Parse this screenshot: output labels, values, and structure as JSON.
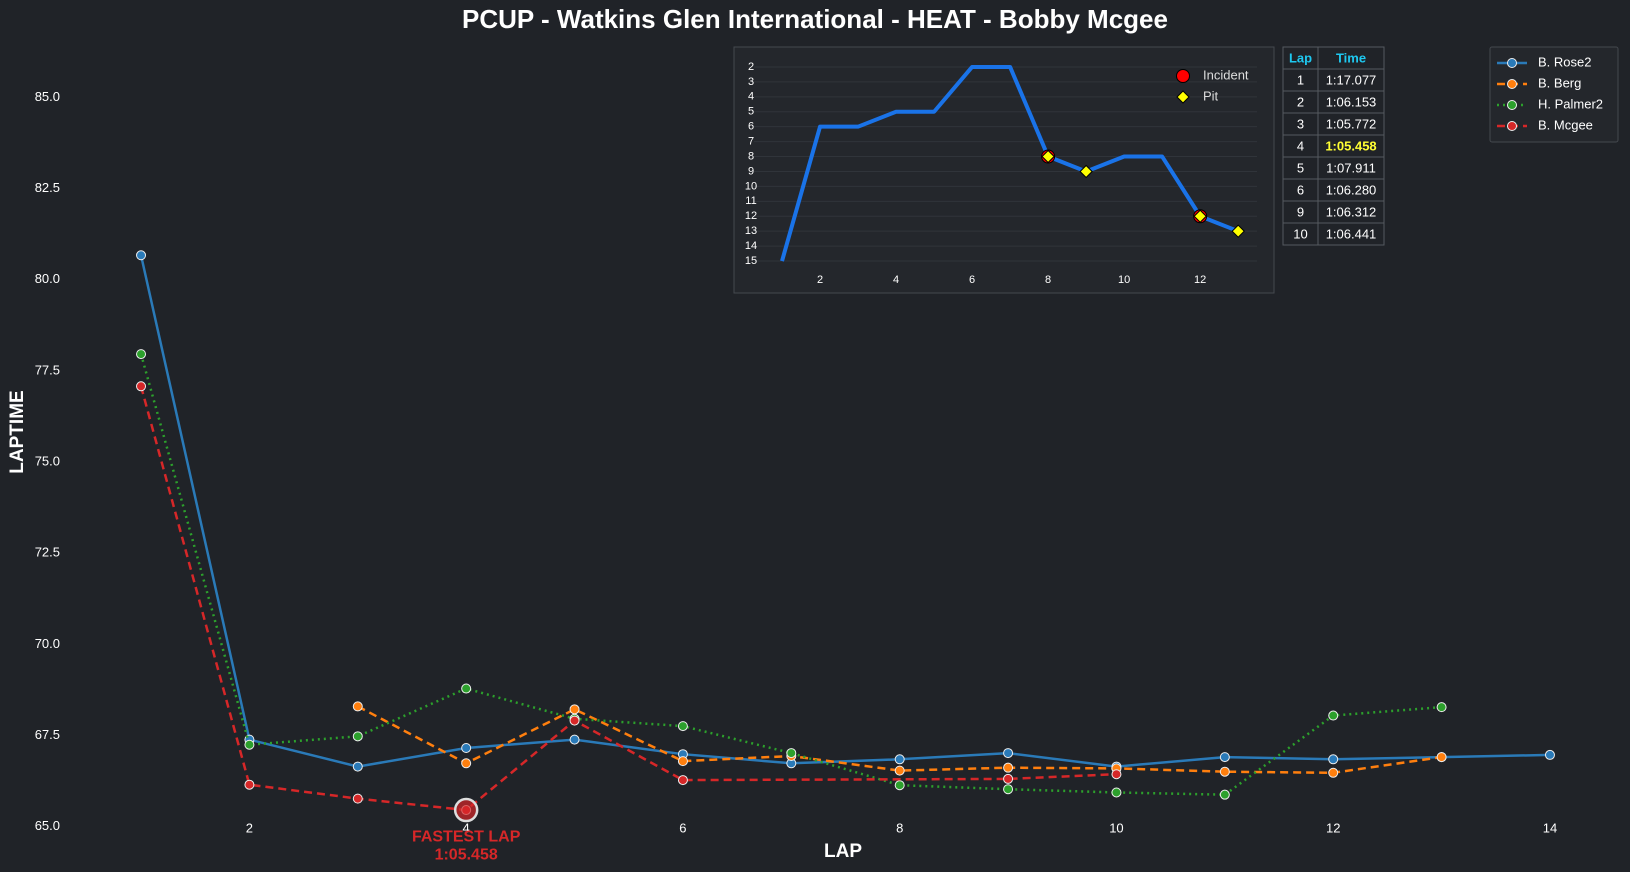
{
  "chart_data": [
    {
      "type": "line",
      "title": "PCUP - Watkins Glen International - HEAT - Bobby Mcgee",
      "x_label": "LAP",
      "y_label": "LAPTIME",
      "xlim": [
        0.4,
        14.6
      ],
      "ylim": [
        64.5,
        86.6
      ],
      "xticks": [
        2,
        4,
        6,
        8,
        10,
        12,
        14
      ],
      "yticks": [
        {
          "value": 65,
          "label": "65.0"
        },
        67.5,
        {
          "value": 70,
          "label": "70.0"
        },
        72.5,
        {
          "value": 75,
          "label": "75.0"
        },
        77.5,
        {
          "value": 80,
          "label": "80.0"
        },
        82.5,
        {
          "value": 85,
          "label": "85.0"
        }
      ],
      "legend": "upper right",
      "series": [
        {
          "name": "B. Rose2",
          "color": "#2a7ab8",
          "dash": "solid",
          "x": [
            1,
            2,
            3,
            4,
            5,
            6,
            7,
            8,
            9,
            10,
            11,
            12,
            13,
            14
          ],
          "values": [
            80.67,
            67.39,
            66.65,
            67.16,
            67.39,
            66.99,
            66.74,
            66.85,
            67.02,
            66.65,
            66.91,
            66.85,
            66.91,
            66.97
          ]
        },
        {
          "name": "B. Berg",
          "color": "#ff7f0e",
          "dash": "dashed",
          "x": [
            3,
            4,
            5,
            6,
            7,
            8,
            9,
            10,
            11,
            12,
            13
          ],
          "values": [
            68.3,
            66.74,
            68.22,
            66.8,
            66.94,
            66.54,
            66.62,
            66.6,
            66.51,
            66.48,
            66.91
          ]
        },
        {
          "name": "H. Palmer2",
          "color": "#2ca02c",
          "dash": "dotted",
          "x": [
            1,
            2,
            3,
            4,
            5,
            6,
            7,
            8,
            9,
            10,
            11,
            12,
            13
          ],
          "values": [
            77.96,
            67.25,
            67.48,
            68.79,
            67.96,
            67.76,
            67.02,
            66.14,
            66.03,
            65.94,
            65.88,
            68.05,
            68.28
          ]
        },
        {
          "name": "B. Mcgee",
          "color": "#d62728",
          "dash": "dashed",
          "x": [
            1,
            2,
            3,
            4,
            5,
            6,
            9,
            10
          ],
          "values": [
            77.077,
            66.153,
            65.772,
            65.458,
            67.911,
            66.28,
            66.312,
            66.441
          ]
        }
      ],
      "annotation": {
        "text": [
          "FASTEST LAP",
          "1:05.458"
        ],
        "x": 4,
        "y": 65.458,
        "color": "#d62728"
      }
    },
    {
      "type": "line",
      "color": "#1a73e8",
      "grid": true,
      "y_inverted": true,
      "xlim": [
        0,
        13.6
      ],
      "ylim": [
        15.6,
        1.4
      ],
      "xticks": [
        2,
        4,
        6,
        8,
        10,
        12
      ],
      "yticks": [
        2,
        3,
        4,
        5,
        6,
        7,
        8,
        9,
        10,
        11,
        12,
        13,
        14,
        15
      ],
      "x": [
        1,
        2,
        3,
        4,
        5,
        6,
        7,
        8,
        9,
        10,
        11,
        12,
        13
      ],
      "values": [
        15,
        6,
        6,
        5,
        5,
        2,
        2,
        8,
        9,
        8,
        8,
        12,
        13
      ],
      "markers": [
        {
          "name": "Incident",
          "color": "#ff0000",
          "shape": "circle",
          "x": [
            8,
            12
          ],
          "values": [
            8,
            12
          ]
        },
        {
          "name": "Pit",
          "color": "#ffff00",
          "shape": "diamond",
          "x": [
            8,
            9,
            12,
            13
          ],
          "values": [
            8,
            9,
            12,
            13
          ]
        }
      ]
    }
  ],
  "lap_table": {
    "columns": [
      "Lap",
      "Time"
    ],
    "highlight_row": 3,
    "rows": [
      [
        1,
        "1:17.077"
      ],
      [
        2,
        "1:06.153"
      ],
      [
        3,
        "1:05.772"
      ],
      [
        4,
        "1:05.458"
      ],
      [
        5,
        "1:07.911"
      ],
      [
        6,
        "1:06.280"
      ],
      [
        9,
        "1:06.312"
      ],
      [
        10,
        "1:06.441"
      ]
    ]
  }
}
